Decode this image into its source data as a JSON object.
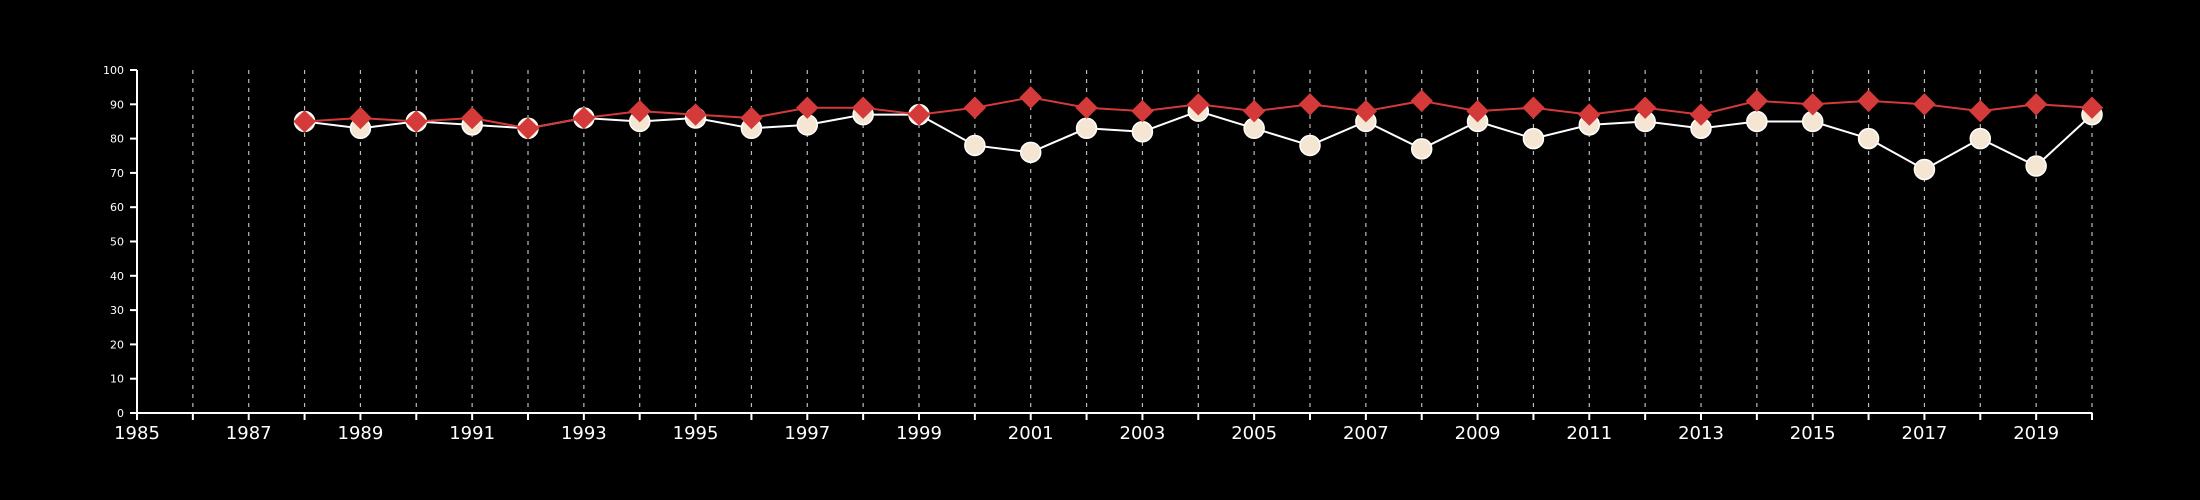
{
  "chart_data": {
    "type": "line",
    "title": "",
    "xlabel": "",
    "ylabel": "",
    "xlim": [
      1985,
      2020
    ],
    "ylim": [
      0,
      100
    ],
    "x_ticks": [
      1985,
      1987,
      1989,
      1991,
      1993,
      1995,
      1997,
      1999,
      2001,
      2003,
      2005,
      2007,
      2009,
      2011,
      2013,
      2015,
      2017,
      2019
    ],
    "y_ticks": [
      0,
      10,
      20,
      30,
      40,
      50,
      60,
      70,
      80,
      90,
      100
    ],
    "grid": {
      "vertical": true,
      "horizontal": false,
      "style": "dashed"
    },
    "legend": "none",
    "background": "#000000",
    "axis_color": "#ffffff",
    "x": [
      1988,
      1989,
      1990,
      1991,
      1992,
      1993,
      1994,
      1995,
      1996,
      1997,
      1998,
      1999,
      2000,
      2001,
      2002,
      2003,
      2004,
      2005,
      2006,
      2007,
      2008,
      2009,
      2010,
      2011,
      2012,
      2013,
      2014,
      2015,
      2016,
      2017,
      2018,
      2019,
      2020
    ],
    "series": [
      {
        "marker": "circle",
        "color": "#ffffff",
        "marker_fill": "#f5e6d3",
        "values": [
          85,
          83,
          85,
          84,
          83,
          86,
          85,
          86,
          83,
          84,
          87,
          87,
          78,
          76,
          83,
          82,
          88,
          83,
          78,
          85,
          77,
          85,
          80,
          84,
          85,
          83,
          85,
          85,
          80,
          71,
          80,
          72,
          87
        ]
      },
      {
        "marker": "diamond",
        "color": "#d43a3a",
        "values": [
          85,
          86,
          85,
          86,
          83,
          86,
          88,
          87,
          86,
          89,
          89,
          87,
          89,
          92,
          89,
          88,
          90,
          88,
          90,
          88,
          91,
          88,
          89,
          87,
          89,
          87,
          91,
          90,
          91,
          90,
          88,
          90,
          89
        ]
      }
    ]
  }
}
